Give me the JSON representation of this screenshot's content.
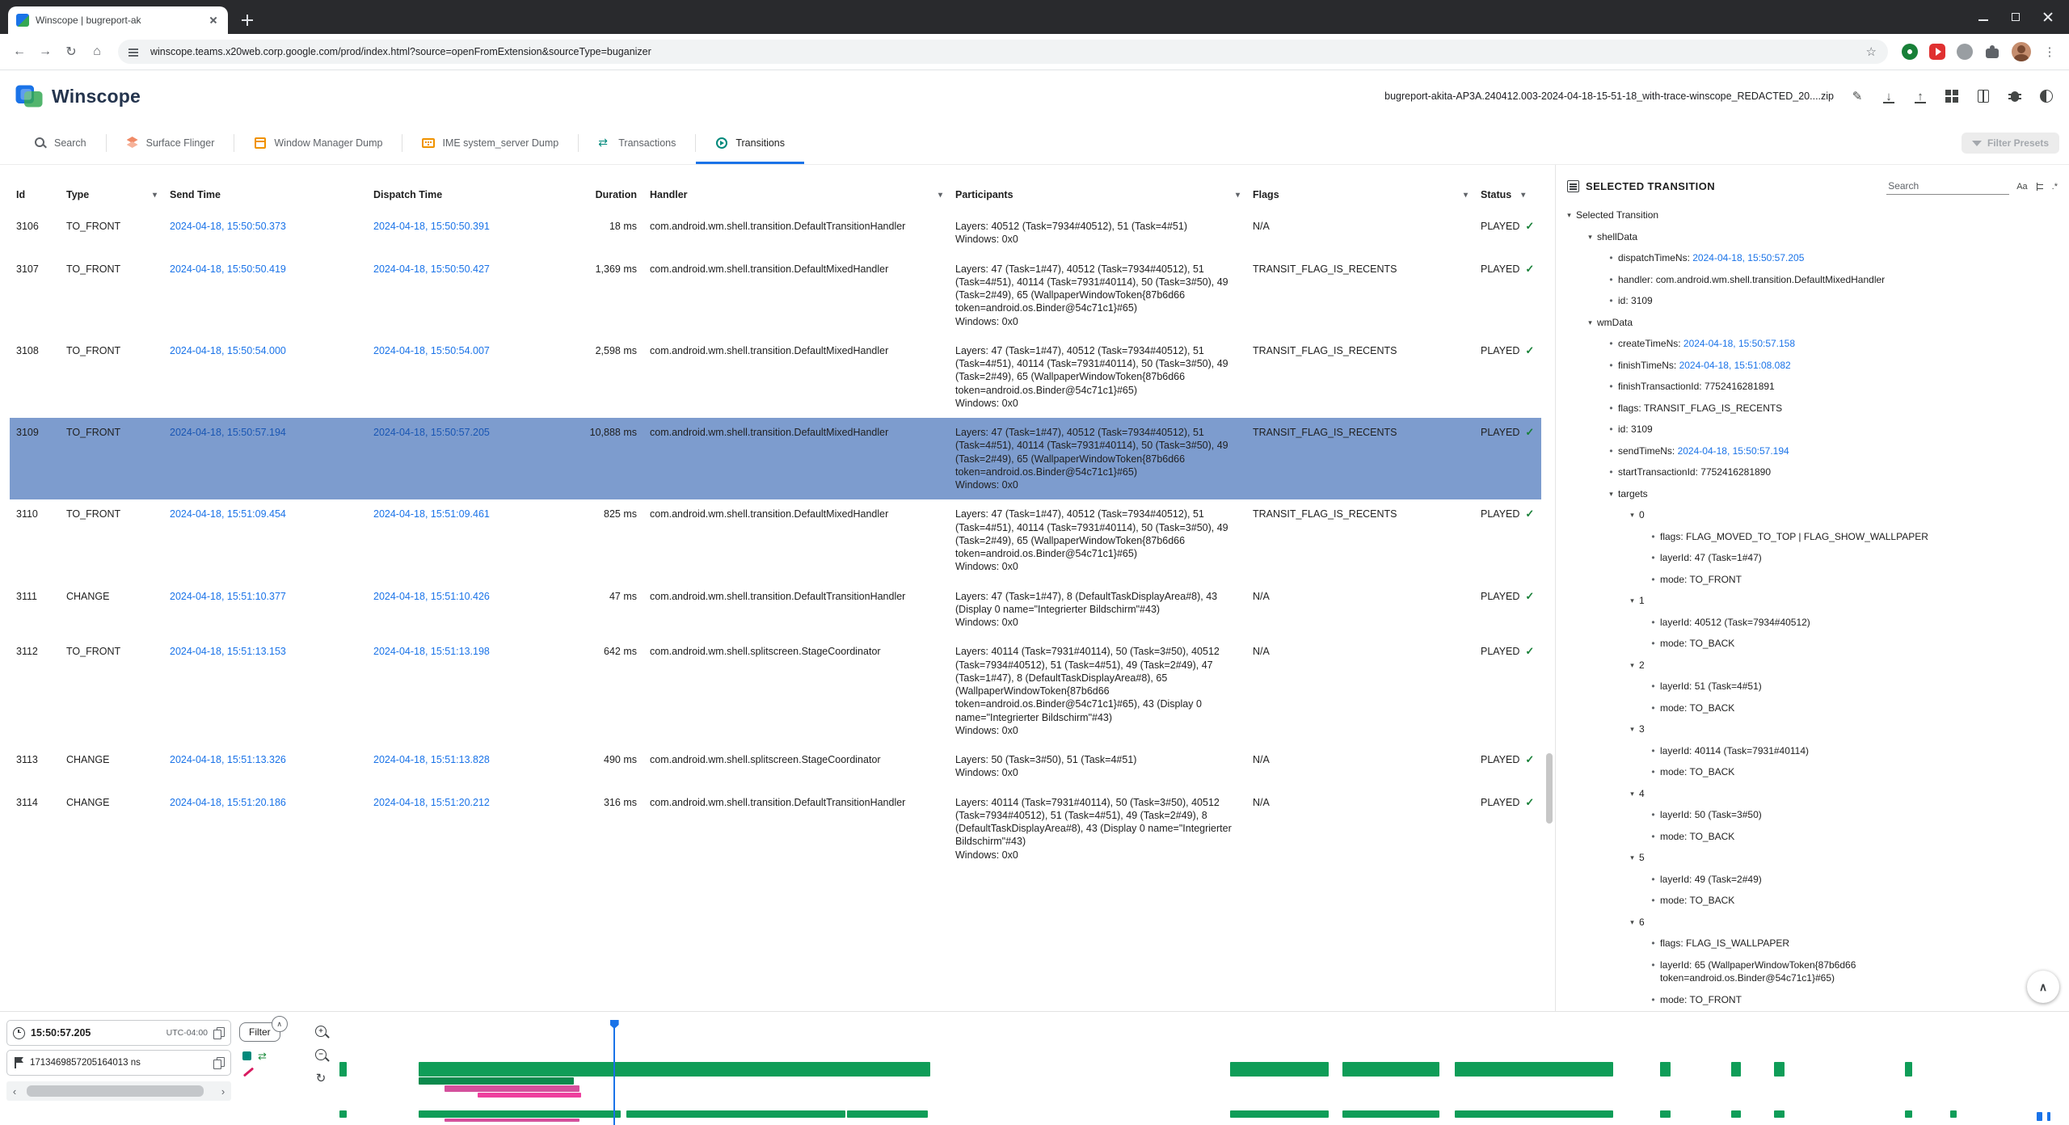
{
  "browser": {
    "tab_title": "Winscope | bugreport-ak",
    "url": "winscope.teams.x20web.corp.google.com/prod/index.html?source=openFromExtension&sourceType=buganizer"
  },
  "header": {
    "app_title": "Winscope",
    "file_name": "bugreport-akita-AP3A.240412.003-2024-04-18-15-51-18_with-trace-winscope_REDACTED_20....zip"
  },
  "toolbar_tabs": [
    {
      "label": "Search",
      "icon": "ti-search",
      "active": false
    },
    {
      "label": "Surface Flinger",
      "icon": "ti-layers",
      "active": false
    },
    {
      "label": "Window Manager Dump",
      "icon": "ti-window",
      "active": false
    },
    {
      "label": "IME system_server Dump",
      "icon": "ti-keyboard",
      "active": false
    },
    {
      "label": "Transactions",
      "icon": "ti-transactions",
      "active": false
    },
    {
      "label": "Transitions",
      "icon": "ti-transitions",
      "active": true
    }
  ],
  "filter_presets": "Filter Presets",
  "table": {
    "columns": [
      {
        "label": "Id",
        "filter": false
      },
      {
        "label": "Type",
        "filter": true
      },
      {
        "label": "Send Time",
        "filter": false
      },
      {
        "label": "Dispatch Time",
        "filter": false
      },
      {
        "label": "Duration",
        "filter": false,
        "right": true
      },
      {
        "label": "Handler",
        "filter": true
      },
      {
        "label": "Participants",
        "filter": true
      },
      {
        "label": "Flags",
        "filter": true
      },
      {
        "label": "Status",
        "filter": true,
        "inline": true
      }
    ],
    "rows": [
      {
        "id": "3106",
        "type": "TO_FRONT",
        "send_time": "2024-04-18, 15:50:50.373",
        "dispatch_time": "2024-04-18, 15:50:50.391",
        "duration": "18 ms",
        "handler": "com.android.wm.shell.transition.DefaultTransitionHandler",
        "layers": "Layers: 40512 (Task=7934#40512), 51 (Task=4#51)",
        "windows": "Windows: 0x0",
        "flags": "N/A",
        "status": "PLAYED",
        "selected": false
      },
      {
        "id": "3107",
        "type": "TO_FRONT",
        "send_time": "2024-04-18, 15:50:50.419",
        "dispatch_time": "2024-04-18, 15:50:50.427",
        "duration": "1,369 ms",
        "handler": "com.android.wm.shell.transition.DefaultMixedHandler",
        "layers": "Layers: 47 (Task=1#47), 40512 (Task=7934#40512), 51 (Task=4#51), 40114 (Task=7931#40114), 50 (Task=3#50), 49 (Task=2#49), 65 (WallpaperWindowToken{87b6d66 token=android.os.Binder@54c71c1}#65)",
        "windows": "Windows: 0x0",
        "flags": "TRANSIT_FLAG_IS_RECENTS",
        "status": "PLAYED",
        "selected": false
      },
      {
        "id": "3108",
        "type": "TO_FRONT",
        "send_time": "2024-04-18, 15:50:54.000",
        "dispatch_time": "2024-04-18, 15:50:54.007",
        "duration": "2,598 ms",
        "handler": "com.android.wm.shell.transition.DefaultMixedHandler",
        "layers": "Layers: 47 (Task=1#47), 40512 (Task=7934#40512), 51 (Task=4#51), 40114 (Task=7931#40114), 50 (Task=3#50), 49 (Task=2#49), 65 (WallpaperWindowToken{87b6d66 token=android.os.Binder@54c71c1}#65)",
        "windows": "Windows: 0x0",
        "flags": "TRANSIT_FLAG_IS_RECENTS",
        "status": "PLAYED",
        "selected": false
      },
      {
        "id": "3109",
        "type": "TO_FRONT",
        "send_time": "2024-04-18, 15:50:57.194",
        "dispatch_time": "2024-04-18, 15:50:57.205",
        "duration": "10,888 ms",
        "handler": "com.android.wm.shell.transition.DefaultMixedHandler",
        "layers": "Layers: 47 (Task=1#47), 40512 (Task=7934#40512), 51 (Task=4#51), 40114 (Task=7931#40114), 50 (Task=3#50), 49 (Task=2#49), 65 (WallpaperWindowToken{87b6d66 token=android.os.Binder@54c71c1}#65)",
        "windows": "Windows: 0x0",
        "flags": "TRANSIT_FLAG_IS_RECENTS",
        "status": "PLAYED",
        "selected": true
      },
      {
        "id": "3110",
        "type": "TO_FRONT",
        "send_time": "2024-04-18, 15:51:09.454",
        "dispatch_time": "2024-04-18, 15:51:09.461",
        "duration": "825 ms",
        "handler": "com.android.wm.shell.transition.DefaultMixedHandler",
        "layers": "Layers: 47 (Task=1#47), 40512 (Task=7934#40512), 51 (Task=4#51), 40114 (Task=7931#40114), 50 (Task=3#50), 49 (Task=2#49), 65 (WallpaperWindowToken{87b6d66 token=android.os.Binder@54c71c1}#65)",
        "windows": "Windows: 0x0",
        "flags": "TRANSIT_FLAG_IS_RECENTS",
        "status": "PLAYED",
        "selected": false
      },
      {
        "id": "3111",
        "type": "CHANGE",
        "send_time": "2024-04-18, 15:51:10.377",
        "dispatch_time": "2024-04-18, 15:51:10.426",
        "duration": "47 ms",
        "handler": "com.android.wm.shell.transition.DefaultTransitionHandler",
        "layers": "Layers: 47 (Task=1#47), 8 (DefaultTaskDisplayArea#8), 43 (Display 0 name=\"Integrierter Bildschirm\"#43)",
        "windows": "Windows: 0x0",
        "flags": "N/A",
        "status": "PLAYED",
        "selected": false
      },
      {
        "id": "3112",
        "type": "TO_FRONT",
        "send_time": "2024-04-18, 15:51:13.153",
        "dispatch_time": "2024-04-18, 15:51:13.198",
        "duration": "642 ms",
        "handler": "com.android.wm.shell.splitscreen.StageCoordinator",
        "layers": "Layers: 40114 (Task=7931#40114), 50 (Task=3#50), 40512 (Task=7934#40512), 51 (Task=4#51), 49 (Task=2#49), 47 (Task=1#47), 8 (DefaultTaskDisplayArea#8), 65 (WallpaperWindowToken{87b6d66 token=android.os.Binder@54c71c1}#65), 43 (Display 0 name=\"Integrierter Bildschirm\"#43)",
        "windows": "Windows: 0x0",
        "flags": "N/A",
        "status": "PLAYED",
        "selected": false
      },
      {
        "id": "3113",
        "type": "CHANGE",
        "send_time": "2024-04-18, 15:51:13.326",
        "dispatch_time": "2024-04-18, 15:51:13.828",
        "duration": "490 ms",
        "handler": "com.android.wm.shell.splitscreen.StageCoordinator",
        "layers": "Layers: 50 (Task=3#50), 51 (Task=4#51)",
        "windows": "Windows: 0x0",
        "flags": "N/A",
        "status": "PLAYED",
        "selected": false
      },
      {
        "id": "3114",
        "type": "CHANGE",
        "send_time": "2024-04-18, 15:51:20.186",
        "dispatch_time": "2024-04-18, 15:51:20.212",
        "duration": "316 ms",
        "handler": "com.android.wm.shell.transition.DefaultTransitionHandler",
        "layers": "Layers: 40114 (Task=7931#40114), 50 (Task=3#50), 40512 (Task=7934#40512), 51 (Task=4#51), 49 (Task=2#49), 8 (DefaultTaskDisplayArea#8), 43 (Display 0 name=\"Integrierter Bildschirm\"#43)",
        "windows": "Windows: 0x0",
        "flags": "N/A",
        "status": "PLAYED",
        "selected": false
      }
    ]
  },
  "props": {
    "title": "SELECTED TRANSITION",
    "search_placeholder": "Search",
    "match_case": "Aa",
    "regex": ".*",
    "tree": {
      "label": "Selected Transition",
      "children": [
        {
          "label": "shellData",
          "children": [
            {
              "key": "dispatchTimeNs",
              "value": "2024-04-18, 15:50:57.205",
              "time": true
            },
            {
              "key": "handler",
              "value": "com.android.wm.shell.transition.DefaultMixedHandler"
            },
            {
              "key": "id",
              "value": "3109"
            }
          ]
        },
        {
          "label": "wmData",
          "children": [
            {
              "key": "createTimeNs",
              "value": "2024-04-18, 15:50:57.158",
              "time": true
            },
            {
              "key": "finishTimeNs",
              "value": "2024-04-18, 15:51:08.082",
              "time": true
            },
            {
              "key": "finishTransactionId",
              "value": "7752416281891"
            },
            {
              "key": "flags",
              "value": "TRANSIT_FLAG_IS_RECENTS"
            },
            {
              "key": "id",
              "value": "3109"
            },
            {
              "key": "sendTimeNs",
              "value": "2024-04-18, 15:50:57.194",
              "time": true
            },
            {
              "key": "startTransactionId",
              "value": "7752416281890"
            },
            {
              "label": "targets",
              "children": [
                {
                  "label": "0",
                  "children": [
                    {
                      "key": "flags",
                      "value": "FLAG_MOVED_TO_TOP | FLAG_SHOW_WALLPAPER"
                    },
                    {
                      "key": "layerId",
                      "value": "47 (Task=1#47)"
                    },
                    {
                      "key": "mode",
                      "value": "TO_FRONT"
                    }
                  ]
                },
                {
                  "label": "1",
                  "children": [
                    {
                      "key": "layerId",
                      "value": "40512 (Task=7934#40512)"
                    },
                    {
                      "key": "mode",
                      "value": "TO_BACK"
                    }
                  ]
                },
                {
                  "label": "2",
                  "children": [
                    {
                      "key": "layerId",
                      "value": "51 (Task=4#51)"
                    },
                    {
                      "key": "mode",
                      "value": "TO_BACK"
                    }
                  ]
                },
                {
                  "label": "3",
                  "children": [
                    {
                      "key": "layerId",
                      "value": "40114 (Task=7931#40114)"
                    },
                    {
                      "key": "mode",
                      "value": "TO_BACK"
                    }
                  ]
                },
                {
                  "label": "4",
                  "children": [
                    {
                      "key": "layerId",
                      "value": "50 (Task=3#50)"
                    },
                    {
                      "key": "mode",
                      "value": "TO_BACK"
                    }
                  ]
                },
                {
                  "label": "5",
                  "children": [
                    {
                      "key": "layerId",
                      "value": "49 (Task=2#49)"
                    },
                    {
                      "key": "mode",
                      "value": "TO_BACK"
                    }
                  ]
                },
                {
                  "label": "6",
                  "children": [
                    {
                      "key": "flags",
                      "value": "FLAG_IS_WALLPAPER"
                    },
                    {
                      "key": "layerId",
                      "value": "65 (WallpaperWindowToken{87b6d66 token=android.os.Binder@54c71c1}#65)"
                    },
                    {
                      "key": "mode",
                      "value": "TO_FRONT"
                    }
                  ]
                }
              ]
            },
            {
              "key": "type",
              "value": "TO_FRONT"
            }
          ]
        }
      ]
    }
  },
  "timeline": {
    "cursor_time": "15:50:57.205",
    "timezone": "UTC-04:00",
    "cursor_ns": "1713469857205164013 ns",
    "filter_label": "Filter",
    "cursor_percent": 15.9,
    "tracks": {
      "main": [
        [
          0,
          0.4
        ],
        [
          4.6,
          29.6
        ],
        [
          51.6,
          5.7
        ],
        [
          58.1,
          5.6
        ],
        [
          64.6,
          9.2
        ],
        [
          76.5,
          0.6
        ],
        [
          80.6,
          0.6
        ],
        [
          83.1,
          0.6
        ],
        [
          90.7,
          0.4
        ]
      ],
      "sub_green": [
        [
          4.6,
          9.0
        ]
      ],
      "pink": [
        [
          6.1,
          7.8
        ]
      ],
      "pink_bright": [
        [
          8.0,
          6.0
        ]
      ],
      "overview_green": [
        [
          0,
          0.4
        ],
        [
          4.6,
          11.7
        ],
        [
          16.6,
          12.7
        ],
        [
          29.4,
          4.7
        ],
        [
          51.6,
          5.7
        ],
        [
          58.1,
          5.6
        ],
        [
          64.6,
          9.2
        ],
        [
          76.5,
          0.6
        ],
        [
          80.6,
          0.6
        ],
        [
          83.1,
          0.6
        ],
        [
          90.7,
          0.4
        ],
        [
          93.3,
          0.4
        ]
      ],
      "overview_pink": [
        [
          6.1,
          7.8
        ]
      ],
      "overview_blue": [
        [
          98.3,
          0.35
        ],
        [
          98.9,
          0.2
        ]
      ]
    }
  },
  "colors": {
    "accent": "#1a73e8",
    "selected_row": "#7d9cce",
    "segment_green": "#0f9d58",
    "segment_pink": "#d4509c",
    "segment_pink_bright": "#ee3f9e",
    "status_green": "#188038"
  },
  "icons": {
    "back": "←",
    "forward": "→",
    "reload": "↻",
    "home": "⌂",
    "star": "☆",
    "menu": "⋮",
    "edit": "✎",
    "check": "✓",
    "dropdown": "▾",
    "bullet": "•",
    "expanded": "▾",
    "up": "∧",
    "scroll_left": "‹",
    "scroll_right": "›",
    "plus": "+",
    "minus": "−",
    "reset": "↻",
    "swap": "⇄",
    "down_arrow": "↓",
    "up_arrow": "↑"
  }
}
